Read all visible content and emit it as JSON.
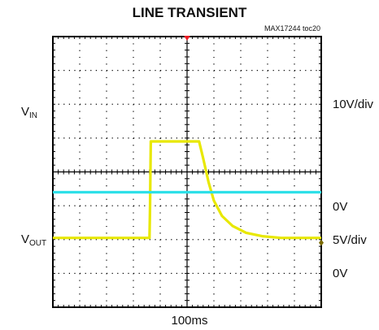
{
  "title": "LINE TRANSIENT",
  "ref": "MAX17244 toc20",
  "labels": {
    "vin_main": "V",
    "vin_sub": "IN",
    "vout_main": "V",
    "vout_sub": "OUT",
    "vin_scale": "10V/div",
    "vout_zero_top": "0V",
    "vout_scale": "5V/div",
    "vout_zero_bottom": "0V",
    "timebase": "100ms"
  },
  "colors": {
    "vin": "#e8e800",
    "vout": "#2ee0e8",
    "trigger": "#ee1c24",
    "grid": "#000000"
  },
  "chart_data": {
    "type": "line",
    "title": "LINE TRANSIENT",
    "xlabel": "100ms",
    "x_divisions": 10,
    "y_divisions": 8,
    "series": [
      {
        "name": "VIN",
        "scale": "10V/div",
        "points_div": [
          [
            0,
            5.95
          ],
          [
            3.6,
            5.95
          ],
          [
            3.62,
            5.0
          ],
          [
            3.65,
            3.1
          ],
          [
            3.7,
            3.1
          ],
          [
            5.45,
            3.1
          ],
          [
            5.6,
            3.6
          ],
          [
            5.8,
            4.3
          ],
          [
            6.0,
            4.85
          ],
          [
            6.3,
            5.3
          ],
          [
            6.7,
            5.6
          ],
          [
            7.2,
            5.8
          ],
          [
            7.8,
            5.9
          ],
          [
            8.5,
            5.95
          ],
          [
            10,
            5.95
          ]
        ]
      },
      {
        "name": "VOUT",
        "scale": "5V/div",
        "points_div": [
          [
            0,
            4.6
          ],
          [
            10,
            4.6
          ]
        ]
      }
    ]
  }
}
